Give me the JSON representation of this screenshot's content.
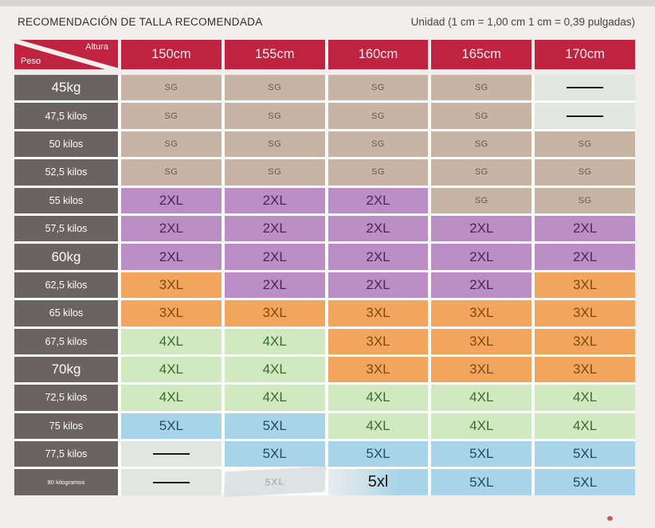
{
  "header": {
    "title": "RECOMENDACIÓN DE TALLA RECOMENDADA",
    "unit_note": "Unidad (1 cm = 1,00 cm 1 cm = 0,39 pulgadas)"
  },
  "table": {
    "corner_top": "Altura",
    "corner_bottom": "Peso",
    "columns": [
      "150cm",
      "155cm",
      "160cm",
      "165cm",
      "170cm"
    ],
    "rows": [
      {
        "label": "45kg",
        "label_size": "lg",
        "cells": [
          {
            "t": "SG",
            "k": "sg"
          },
          {
            "t": "SG",
            "k": "sg"
          },
          {
            "t": "SG",
            "k": "sg"
          },
          {
            "t": "SG",
            "k": "sg"
          },
          {
            "t": "",
            "k": "dash"
          }
        ]
      },
      {
        "label": "47,5 kilos",
        "label_size": "md",
        "cells": [
          {
            "t": "SG",
            "k": "sg"
          },
          {
            "t": "SG",
            "k": "sg"
          },
          {
            "t": "SG",
            "k": "sg"
          },
          {
            "t": "SG",
            "k": "sg"
          },
          {
            "t": "",
            "k": "dash"
          }
        ]
      },
      {
        "label": "50 kilos",
        "label_size": "md",
        "cells": [
          {
            "t": "SG",
            "k": "sg"
          },
          {
            "t": "SG",
            "k": "sg"
          },
          {
            "t": "SG",
            "k": "sg"
          },
          {
            "t": "SG",
            "k": "sg"
          },
          {
            "t": "SG",
            "k": "sg"
          }
        ]
      },
      {
        "label": "52,5 kilos",
        "label_size": "md",
        "cells": [
          {
            "t": "SG",
            "k": "sg"
          },
          {
            "t": "SG",
            "k": "sg"
          },
          {
            "t": "SG",
            "k": "sg"
          },
          {
            "t": "SG",
            "k": "sg"
          },
          {
            "t": "SG",
            "k": "sg"
          }
        ]
      },
      {
        "label": "55 kilos",
        "label_size": "md",
        "cells": [
          {
            "t": "2XL",
            "k": "2xl"
          },
          {
            "t": "2XL",
            "k": "2xl"
          },
          {
            "t": "2XL",
            "k": "2xl"
          },
          {
            "t": "SG",
            "k": "sg"
          },
          {
            "t": "SG",
            "k": "sg"
          }
        ]
      },
      {
        "label": "57,5 kilos",
        "label_size": "md",
        "cells": [
          {
            "t": "2XL",
            "k": "2xl"
          },
          {
            "t": "2XL",
            "k": "2xl"
          },
          {
            "t": "2XL",
            "k": "2xl"
          },
          {
            "t": "2XL",
            "k": "2xl"
          },
          {
            "t": "2XL",
            "k": "2xl"
          }
        ]
      },
      {
        "label": "60kg",
        "label_size": "lg",
        "cells": [
          {
            "t": "2XL",
            "k": "2xl"
          },
          {
            "t": "2XL",
            "k": "2xl"
          },
          {
            "t": "2XL",
            "k": "2xl"
          },
          {
            "t": "2XL",
            "k": "2xl"
          },
          {
            "t": "2XL",
            "k": "2xl"
          }
        ]
      },
      {
        "label": "62,5 kilos",
        "label_size": "md",
        "cells": [
          {
            "t": "3XL",
            "k": "3xl"
          },
          {
            "t": "2XL",
            "k": "2xl"
          },
          {
            "t": "2XL",
            "k": "2xl"
          },
          {
            "t": "2XL",
            "k": "2xl"
          },
          {
            "t": "3XL",
            "k": "3xl"
          }
        ]
      },
      {
        "label": "65 kilos",
        "label_size": "md",
        "cells": [
          {
            "t": "3XL",
            "k": "3xl"
          },
          {
            "t": "3XL",
            "k": "3xl"
          },
          {
            "t": "3XL",
            "k": "3xl"
          },
          {
            "t": "3XL",
            "k": "3xl"
          },
          {
            "t": "3XL",
            "k": "3xl"
          }
        ]
      },
      {
        "label": "67,5 kilos",
        "label_size": "md",
        "cells": [
          {
            "t": "4XL",
            "k": "4xl"
          },
          {
            "t": "4XL",
            "k": "4xl"
          },
          {
            "t": "3XL",
            "k": "3xl"
          },
          {
            "t": "3XL",
            "k": "3xl"
          },
          {
            "t": "3XL",
            "k": "3xl"
          }
        ]
      },
      {
        "label": "70kg",
        "label_size": "lg",
        "cells": [
          {
            "t": "4XL",
            "k": "4xl"
          },
          {
            "t": "4XL",
            "k": "4xl"
          },
          {
            "t": "3XL",
            "k": "3xl"
          },
          {
            "t": "3XL",
            "k": "3xl"
          },
          {
            "t": "3XL",
            "k": "3xl"
          }
        ]
      },
      {
        "label": "72,5 kilos",
        "label_size": "md",
        "cells": [
          {
            "t": "4XL",
            "k": "4xl"
          },
          {
            "t": "4XL",
            "k": "4xl"
          },
          {
            "t": "4XL",
            "k": "4xl"
          },
          {
            "t": "4XL",
            "k": "4xl"
          },
          {
            "t": "4XL",
            "k": "4xl"
          }
        ]
      },
      {
        "label": "75 kilos",
        "label_size": "md",
        "cells": [
          {
            "t": "5XL",
            "k": "5xl"
          },
          {
            "t": "5XL",
            "k": "5xl"
          },
          {
            "t": "4XL",
            "k": "4xl"
          },
          {
            "t": "4XL",
            "k": "4xl"
          },
          {
            "t": "4XL",
            "k": "4xl"
          }
        ]
      },
      {
        "label": "77,5 kilos",
        "label_size": "md",
        "cells": [
          {
            "t": "",
            "k": "dash"
          },
          {
            "t": "5XL",
            "k": "5xl"
          },
          {
            "t": "5XL",
            "k": "5xl"
          },
          {
            "t": "5XL",
            "k": "5xl"
          },
          {
            "t": "5XL",
            "k": "5xl"
          }
        ]
      },
      {
        "label": "80 kilogramos",
        "label_size": "xs",
        "cells": [
          {
            "t": "",
            "k": "dash"
          },
          {
            "t": "5XL",
            "k": "faint"
          },
          {
            "t": "5xl",
            "k": "patched"
          },
          {
            "t": "5XL",
            "k": "5xl"
          },
          {
            "t": "5XL",
            "k": "5xl"
          }
        ]
      }
    ]
  },
  "colors": {
    "header_red": "#c02340",
    "row_header_gray": "#696361",
    "sg_tan": "#c7b4a4",
    "size_2xl_purple": "#bb8ec6",
    "size_3xl_orange": "#f1a55d",
    "size_4xl_green": "#d0e9c1",
    "size_5xl_blue": "#a8d4e9",
    "empty_gray": "#e2e5e2"
  }
}
